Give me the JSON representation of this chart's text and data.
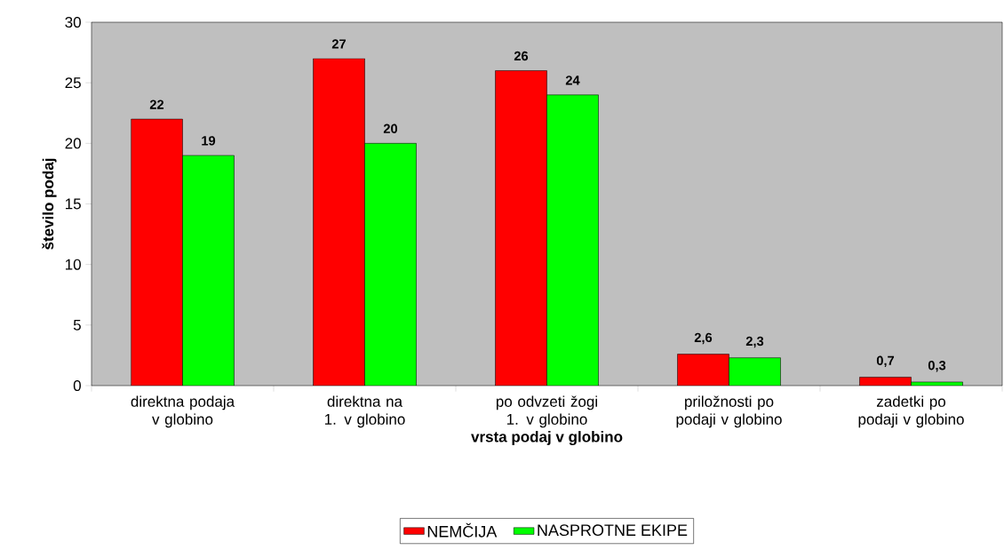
{
  "chart_data": {
    "type": "bar",
    "xlabel": "vrsta podaj v globino",
    "ylabel": "število podaj",
    "categories": [
      "direktna podaja v globino",
      "direktna na 1. v globino",
      "po odvzeti žogi 1. v globino",
      "priložnosti po podaji v globino",
      "zadetki po podaji v globino"
    ],
    "series": [
      {
        "name": "NEMČIJA",
        "color": "#ff0000",
        "values": [
          22,
          27,
          26,
          2.6,
          0.7
        ],
        "value_labels": [
          "22",
          "27",
          "26",
          "2,6",
          "0,7"
        ]
      },
      {
        "name": "NASPROTNE EKIPE",
        "color": "#00ff00",
        "values": [
          19,
          20,
          24,
          2.3,
          0.3
        ],
        "value_labels": [
          "19",
          "20",
          "24",
          "2,3",
          "0,3"
        ]
      }
    ],
    "ylim": [
      0,
      30
    ],
    "yticks": [
      0,
      5,
      10,
      15,
      20,
      25,
      30
    ],
    "legend": "bottom",
    "grid": false
  }
}
